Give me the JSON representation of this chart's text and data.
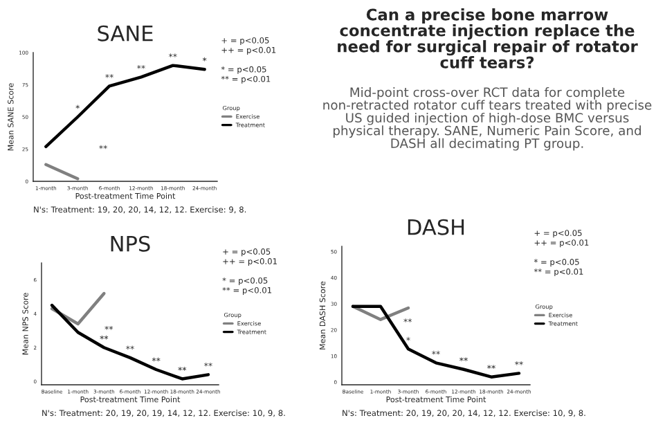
{
  "chart_data": [
    {
      "type": "line",
      "title": "SANE",
      "xlabel": "Post-treatment Time Point",
      "ylabel": "Mean SANE Score",
      "legend_title": "Group",
      "legend": "right",
      "categories": [
        "1-month",
        "3-month",
        "6-month",
        "12-month",
        "18-month",
        "24-month"
      ],
      "ylim": [
        0,
        100
      ],
      "yticks": [
        0,
        25,
        50,
        75,
        100
      ],
      "series": [
        {
          "name": "Exercise",
          "color": "#808080",
          "values": [
            13,
            2,
            null,
            null,
            null,
            null
          ]
        },
        {
          "name": "Treatment",
          "color": "#000000",
          "values": [
            27,
            50,
            74,
            81,
            90,
            87
          ]
        }
      ],
      "annotations": [
        "+ = p<0.05\n++ = p<0.01\n\n* = p<0.05\n** = p<0.01",
        "N's: Treatment: 19, 20, 20, 14, 12, 12. Exercise: 9, 8.",
        {
          "text": "*",
          "x": "3-month",
          "y": 50
        },
        {
          "text": "**",
          "x": "6-month",
          "y": 74
        },
        {
          "text": "**",
          "x": "12-month",
          "y": 81
        },
        {
          "text": "**",
          "x": "18-month",
          "y": 90
        },
        {
          "text": "*",
          "x": "24-month",
          "y": 87
        },
        "**"
      ]
    },
    {
      "type": "line",
      "title": "NPS",
      "xlabel": "Post-treatment Time Point",
      "ylabel": "Mean NPS Score",
      "legend_title": "Group",
      "legend": "right",
      "categories": [
        "Baseline",
        "1-month",
        "3-month",
        "6-month",
        "12-month",
        "18-month",
        "24-month"
      ],
      "ylim": [
        -0.2,
        7
      ],
      "yticks": [
        0,
        2,
        4,
        6
      ],
      "series": [
        {
          "name": "Exercise",
          "color": "#808080",
          "values": [
            4.3,
            3.4,
            5.2,
            null,
            null,
            null,
            null
          ]
        },
        {
          "name": "Treatment",
          "color": "#000000",
          "values": [
            4.5,
            2.9,
            2.0,
            1.4,
            0.7,
            0.15,
            0.4
          ]
        }
      ],
      "annotations": [
        "+ = p<0.05\n++ = p<0.01\n\n* = p<0.05\n** = p<0.01",
        "N's: Treatment: 20, 19, 20, 19, 14, 12, 12. Exercise: 10, 9, 8.",
        {
          "text": "**",
          "x": "3-month",
          "y": 2.0
        },
        {
          "text": "**",
          "x": "6-month",
          "y": 1.4
        },
        {
          "text": "**",
          "x": "12-month",
          "y": 0.7
        },
        {
          "text": "**",
          "x": "18-month",
          "y": 0.15
        },
        {
          "text": "**",
          "x": "24-month",
          "y": 0.4
        },
        "**"
      ]
    },
    {
      "type": "line",
      "title": "DASH",
      "xlabel": "Post-treatment Time Point",
      "ylabel": "Mean DASH Score",
      "legend_title": "Group",
      "legend": "right",
      "categories": [
        "Baseline",
        "1-month",
        "3-month",
        "6-month",
        "12-month",
        "18-month",
        "24-month"
      ],
      "ylim": [
        -1,
        52
      ],
      "yticks": [
        0,
        10,
        20,
        30,
        40,
        50
      ],
      "series": [
        {
          "name": "Exercise",
          "color": "#808080",
          "values": [
            29,
            24,
            28.4,
            null,
            null,
            null,
            null
          ]
        },
        {
          "name": "Treatment",
          "color": "#000000",
          "values": [
            29,
            29,
            12.7,
            7.4,
            4.9,
            2,
            3.4
          ]
        }
      ],
      "annotations": [
        "+ = p<0.05\n++ = p<0.01\n\n* = p<0.05\n** = p<0.01",
        "N's: Treatment: 20, 19, 20, 20, 14, 12, 12. Exercise: 10, 9, 8.",
        {
          "text": "*",
          "x": "3-month",
          "y": 12.7
        },
        {
          "text": "**",
          "x": "6-month",
          "y": 7.4
        },
        {
          "text": "**",
          "x": "12-month",
          "y": 4.9
        },
        {
          "text": "**",
          "x": "18-month",
          "y": 2
        },
        {
          "text": "**",
          "x": "24-month",
          "y": 3.4
        },
        "**"
      ]
    },
    {
      "type": "other",
      "title": "Can a precise bone marrow concentrate injection replace the need for surgical repair of rotator cuff tears?",
      "subtitle": "Mid-point cross-over RCT data for complete non-retracted rotator cuff tears treated with precise US guided injection of high-dose BMC versus physical therapy. SANE, Numeric Pain Score, and DASH all decimating PT group."
    }
  ]
}
